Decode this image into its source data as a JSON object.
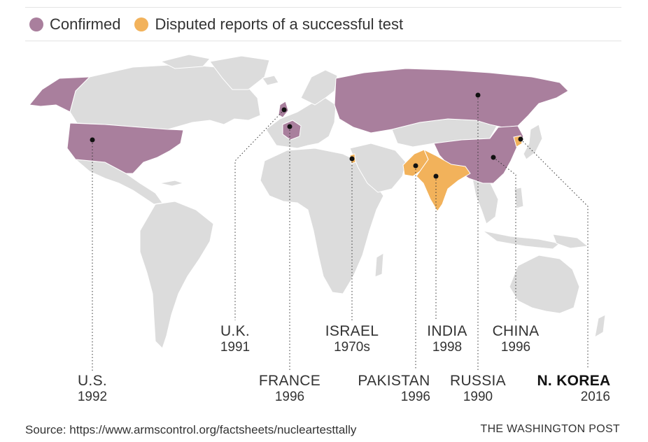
{
  "legend": {
    "confirmed": {
      "label": "Confirmed",
      "color": "#a97f9d"
    },
    "disputed": {
      "label": "Disputed reports of a successful test",
      "color": "#f2b25b"
    }
  },
  "map": {
    "land_color": "#dcdcdc",
    "border_color": "#ffffff",
    "marker_color": "#111111"
  },
  "countries": [
    {
      "id": "us",
      "name": "U.S.",
      "year": "1992",
      "status": "confirmed"
    },
    {
      "id": "uk",
      "name": "U.K.",
      "year": "1991",
      "status": "confirmed"
    },
    {
      "id": "france",
      "name": "FRANCE",
      "year": "1996",
      "status": "confirmed"
    },
    {
      "id": "israel",
      "name": "ISRAEL",
      "year": "1970s",
      "status": "disputed"
    },
    {
      "id": "pakistan",
      "name": "PAKISTAN",
      "year": "1996",
      "status": "disputed"
    },
    {
      "id": "india",
      "name": "INDIA",
      "year": "1998",
      "status": "disputed"
    },
    {
      "id": "russia",
      "name": "RUSSIA",
      "year": "1990",
      "status": "confirmed"
    },
    {
      "id": "china",
      "name": "CHINA",
      "year": "1996",
      "status": "confirmed"
    },
    {
      "id": "nkorea",
      "name": "N. KOREA",
      "year": "2016",
      "status": "disputed"
    }
  ],
  "footer": {
    "source": "Source: https://www.armscontrol.org/factsheets/nucleartesttally",
    "credit": "THE WASHINGTON POST"
  }
}
